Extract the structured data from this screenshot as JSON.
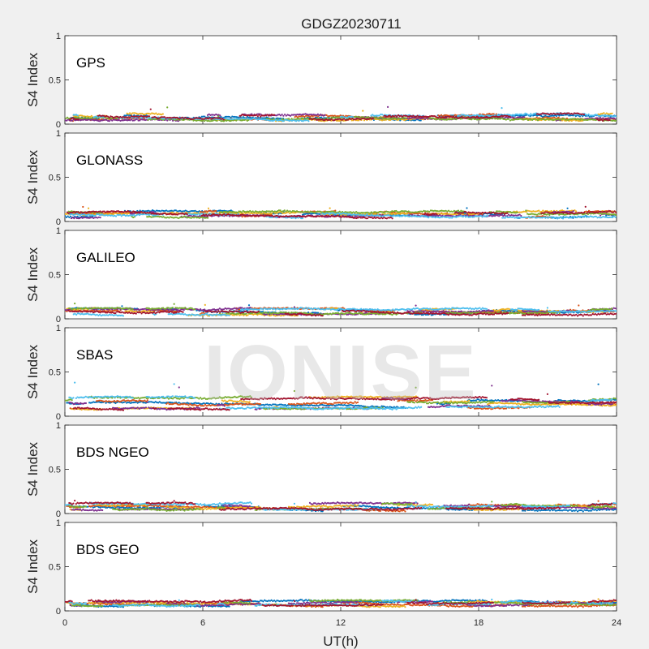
{
  "chart_data": {
    "type": "scatter",
    "title": "GDGZ20230711",
    "xlabel": "UT(h)",
    "ylabel": "S4 Index",
    "xlim": [
      0,
      24
    ],
    "ylim": [
      0,
      1
    ],
    "xticks": [
      0,
      6,
      12,
      18,
      24
    ],
    "yticks": [
      0,
      0.5,
      1
    ],
    "ytick_labels": [
      "0",
      "0.5",
      "1"
    ],
    "watermark": "IONISE",
    "series_colors": [
      "#0072bd",
      "#d95319",
      "#edb120",
      "#7e2f8e",
      "#77ac30",
      "#4dbeee",
      "#a2142f"
    ],
    "panels": [
      {
        "label": "GPS",
        "baseline_min": 0.04,
        "baseline_max": 0.12,
        "max_value": 0.2
      },
      {
        "label": "GLONASS",
        "baseline_min": 0.04,
        "baseline_max": 0.12,
        "max_value": 0.18
      },
      {
        "label": "GALILEO",
        "baseline_min": 0.04,
        "baseline_max": 0.12,
        "max_value": 0.18
      },
      {
        "label": "SBAS",
        "baseline_min": 0.06,
        "baseline_max": 0.22,
        "max_value": 0.4
      },
      {
        "label": "BDS NGEO",
        "baseline_min": 0.03,
        "baseline_max": 0.12,
        "max_value": 0.15
      },
      {
        "label": "BDS GEO",
        "baseline_min": 0.05,
        "baseline_max": 0.12,
        "max_value": 0.14
      }
    ]
  }
}
